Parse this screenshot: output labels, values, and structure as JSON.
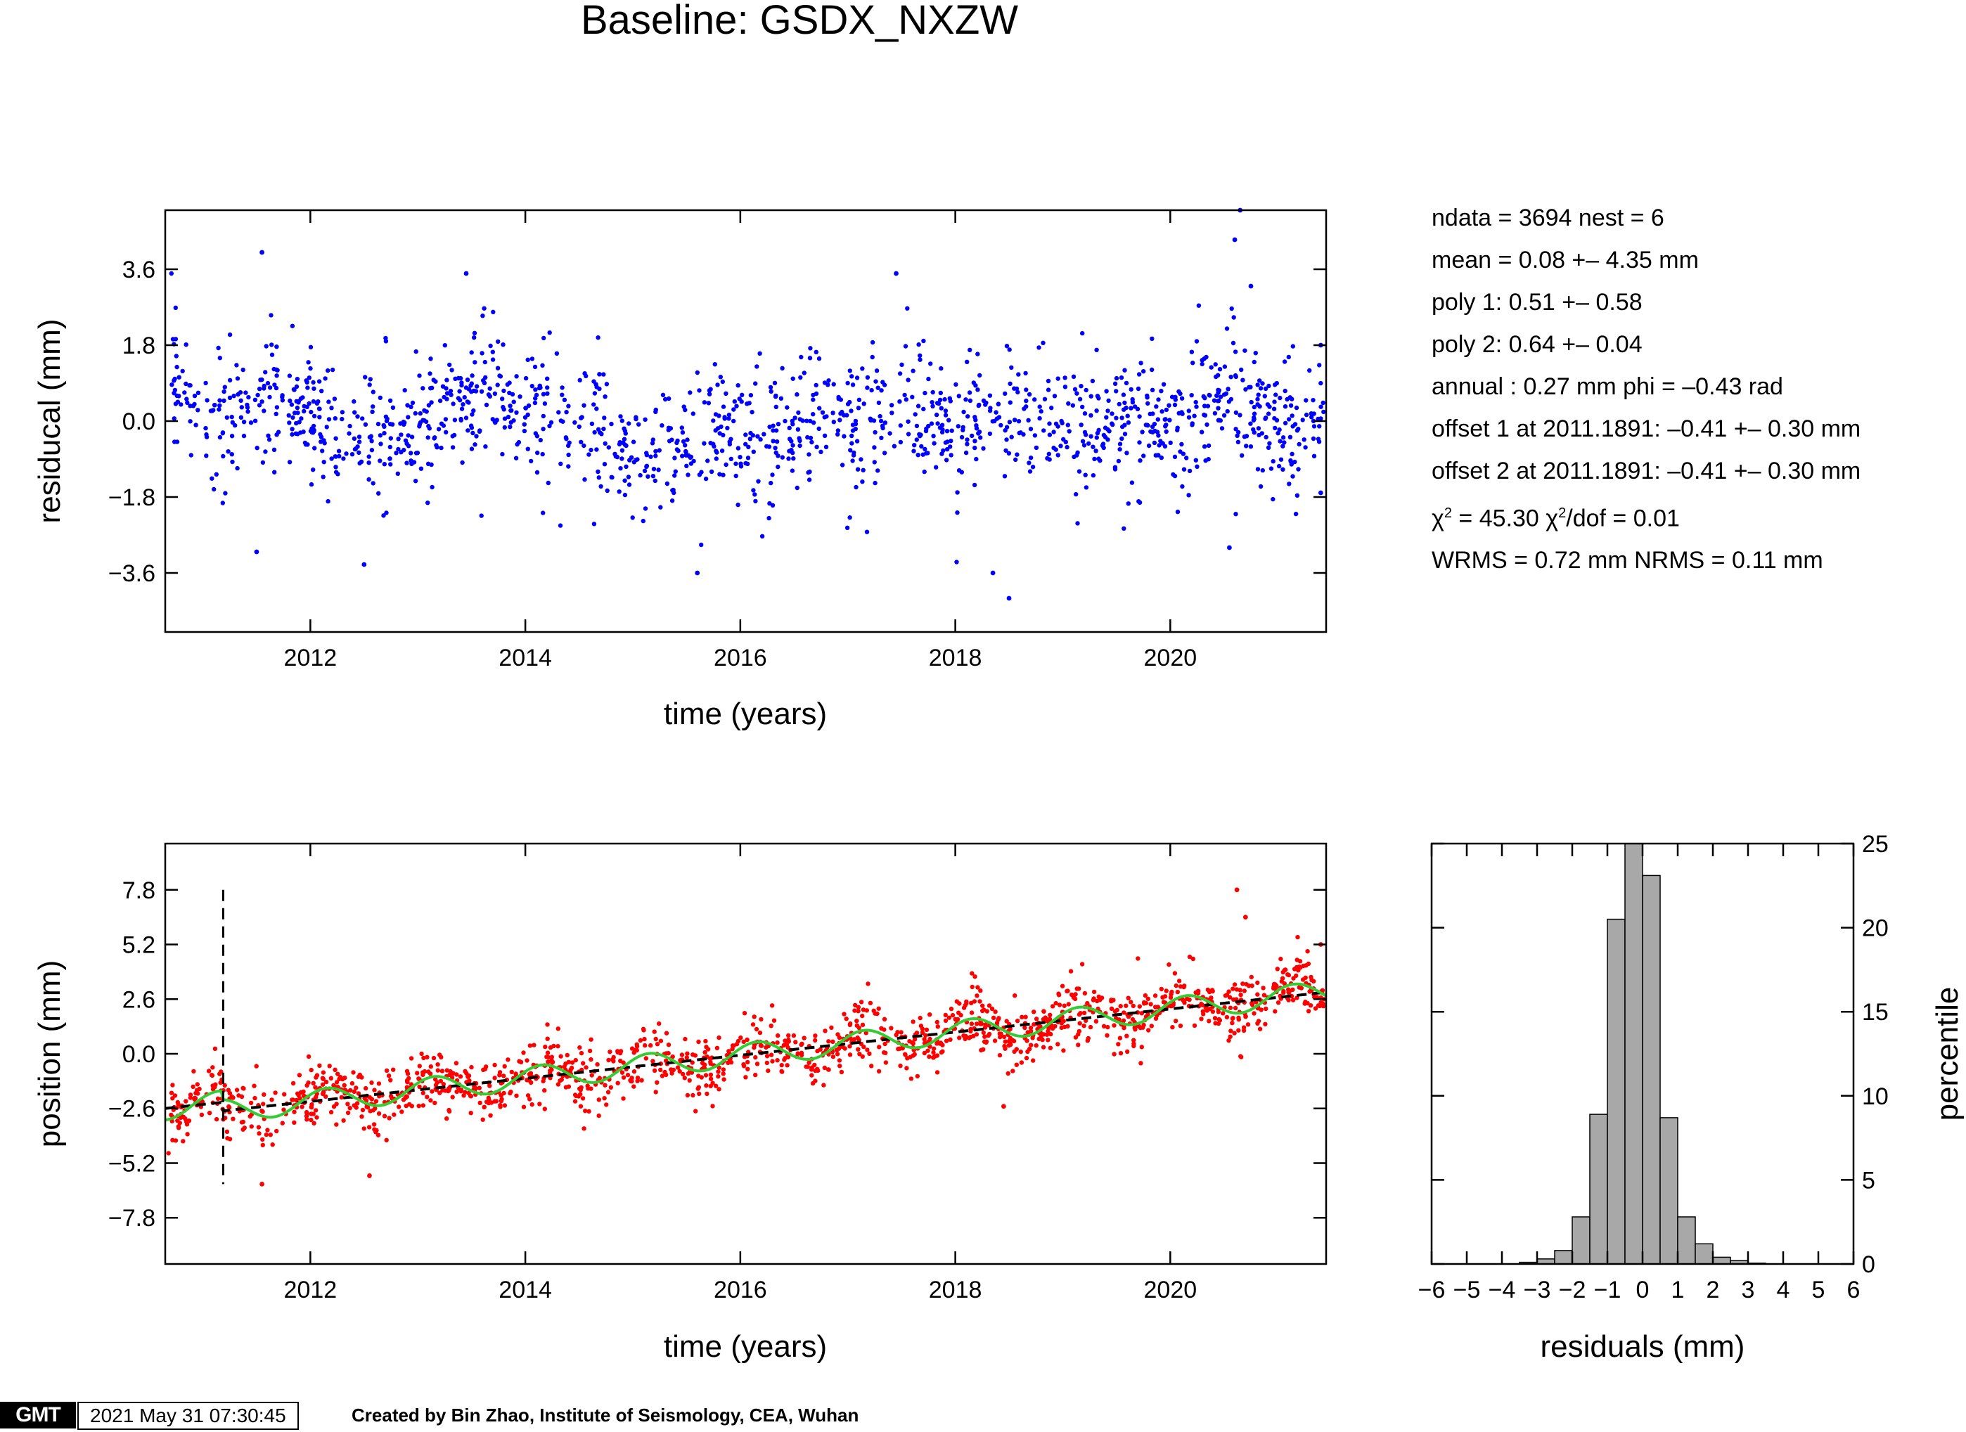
{
  "figure_title": "Baseline: GSDX_NXZW",
  "stats": [
    "ndata = 3694  nest = 6",
    "mean = 0.08 +– 4.35 mm",
    "poly 1: 0.51 +– 0.58",
    "poly 2: 0.64 +– 0.04",
    "annual : 0.27 mm  phi = –0.43 rad",
    "offset 1 at 2011.1891: –0.41 +– 0.30 mm",
    "offset 2 at 2011.1891: –0.41 +– 0.30 mm",
    "chi2_line",
    "WRMS = 0.72 mm  NRMS = 0.11 mm"
  ],
  "chi2": {
    "chi": "χ",
    "sup": "2",
    "value": " = 45.30  ",
    "chi_dof": "χ",
    "dof_sup": "2",
    "dof_text": "/dof = 0.01"
  },
  "footer": {
    "logo": "GMT",
    "timestamp": "2021 May 31 07:30:45",
    "credit": "Created by Bin Zhao, Institute of Seismology, CEA, Wuhan"
  },
  "colors": {
    "residual_points": "#0000ff",
    "position_points": "#ff0000",
    "model_line": "#000000",
    "smooth_line": "#33cc33",
    "histogram_fill": "#a8a8a8"
  },
  "chart_data": [
    {
      "type": "scatter",
      "name": "residuals-plot",
      "xlabel": "time (years)",
      "ylabel": "residucal (mm)",
      "xlim": [
        2010.65,
        2021.45
      ],
      "ylim": [
        -5.0,
        5.0
      ],
      "xticks": [
        2012,
        2014,
        2016,
        2018,
        2020
      ],
      "xtick_labels": [
        "2012",
        "2014",
        "2016",
        "2018",
        "2020"
      ],
      "yticks": [
        3.6,
        1.8,
        0.0,
        -1.8,
        -3.6
      ],
      "ytick_labels": [
        "3.6",
        "1.8",
        "0.0",
        "−1.8",
        "−3.6"
      ],
      "n_points": 1500,
      "scatter_sd": 0.8,
      "trend_knots": {
        "x": [
          2010.7,
          2011.0,
          2011.5,
          2012.0,
          2012.5,
          2013.0,
          2013.5,
          2014.0,
          2014.5,
          2015.0,
          2015.4,
          2015.8,
          2016.5,
          2017.0,
          2017.5,
          2018.0,
          2018.5,
          2019.0,
          2019.5,
          2020.0,
          2020.5,
          2021.0,
          2021.45
        ],
        "y": [
          1.0,
          0.0,
          0.4,
          0.2,
          -0.5,
          0.0,
          0.5,
          0.3,
          -0.1,
          -0.7,
          -1.2,
          0.0,
          -0.3,
          0.1,
          0.2,
          -0.1,
          0.1,
          0.0,
          -0.2,
          0.3,
          0.4,
          0.0,
          0.0
        ]
      },
      "notable_points": [
        [
          2011.55,
          4.0
        ],
        [
          2013.45,
          3.5
        ],
        [
          2017.45,
          3.5
        ],
        [
          2020.65,
          5.0
        ],
        [
          2020.6,
          4.3
        ],
        [
          2020.75,
          3.2
        ],
        [
          2018.5,
          -4.2
        ],
        [
          2018.35,
          -3.6
        ],
        [
          2015.6,
          -3.6
        ],
        [
          2012.5,
          -3.4
        ],
        [
          2011.5,
          -3.1
        ],
        [
          2020.55,
          -3.0
        ],
        [
          2021.4,
          1.8
        ],
        [
          2021.4,
          -1.7
        ]
      ]
    },
    {
      "type": "scatter",
      "name": "position-plot",
      "xlabel": "time (years)",
      "ylabel": "position (mm)",
      "xlim": [
        2010.65,
        2021.45
      ],
      "ylim": [
        -10.0,
        10.0
      ],
      "xticks": [
        2012,
        2014,
        2016,
        2018,
        2020
      ],
      "xtick_labels": [
        "2012",
        "2014",
        "2016",
        "2018",
        "2020"
      ],
      "yticks": [
        7.8,
        5.2,
        2.6,
        0.0,
        -2.6,
        -5.2,
        -7.8
      ],
      "ytick_labels": [
        "7.8",
        "5.2",
        "2.6",
        "0.0",
        "−2.6",
        "−5.2",
        "−7.8"
      ],
      "offset_epoch": 2011.1891,
      "offset_marker_range": [
        -6.2,
        7.8
      ],
      "model": {
        "intercept_at_2010_65": -2.6,
        "slope_mm_per_yr": 0.55,
        "annual_amp_mm": 0.27,
        "annual_phase_rad": -0.43
      },
      "n_points": 1500,
      "notable_points": [
        [
          2020.62,
          7.8
        ],
        [
          2020.7,
          6.5
        ],
        [
          2021.4,
          5.2
        ],
        [
          2011.55,
          -6.2
        ],
        [
          2012.55,
          -5.8
        ],
        [
          2018.45,
          -2.5
        ]
      ]
    },
    {
      "type": "bar",
      "name": "residual-histogram",
      "xlabel": "residuals (mm)",
      "ylabel": "percentile",
      "xlim": [
        -6,
        6
      ],
      "ylim": [
        0,
        25
      ],
      "xticks": [
        -6,
        -5,
        -4,
        -3,
        -2,
        -1,
        0,
        1,
        2,
        3,
        4,
        5,
        6
      ],
      "xtick_labels": [
        "−6",
        "−5",
        "−4",
        "−3",
        "−2",
        "−1",
        "0",
        "1",
        "2",
        "3",
        "4",
        "5",
        "6"
      ],
      "yticks": [
        0,
        5,
        10,
        15,
        20,
        25
      ],
      "ytick_labels": [
        "0",
        "5",
        "10",
        "15",
        "20",
        "25"
      ],
      "bin_width": 0.5,
      "bins_left": [
        -3.5,
        -3.0,
        -2.5,
        -2.0,
        -1.5,
        -1.0,
        -0.5,
        0.0,
        0.5,
        1.0,
        1.5,
        2.0,
        2.5,
        3.0
      ],
      "values": [
        0.1,
        0.3,
        0.8,
        2.8,
        8.9,
        20.5,
        25.0,
        23.1,
        8.7,
        2.8,
        1.2,
        0.4,
        0.2,
        0.05
      ]
    }
  ]
}
